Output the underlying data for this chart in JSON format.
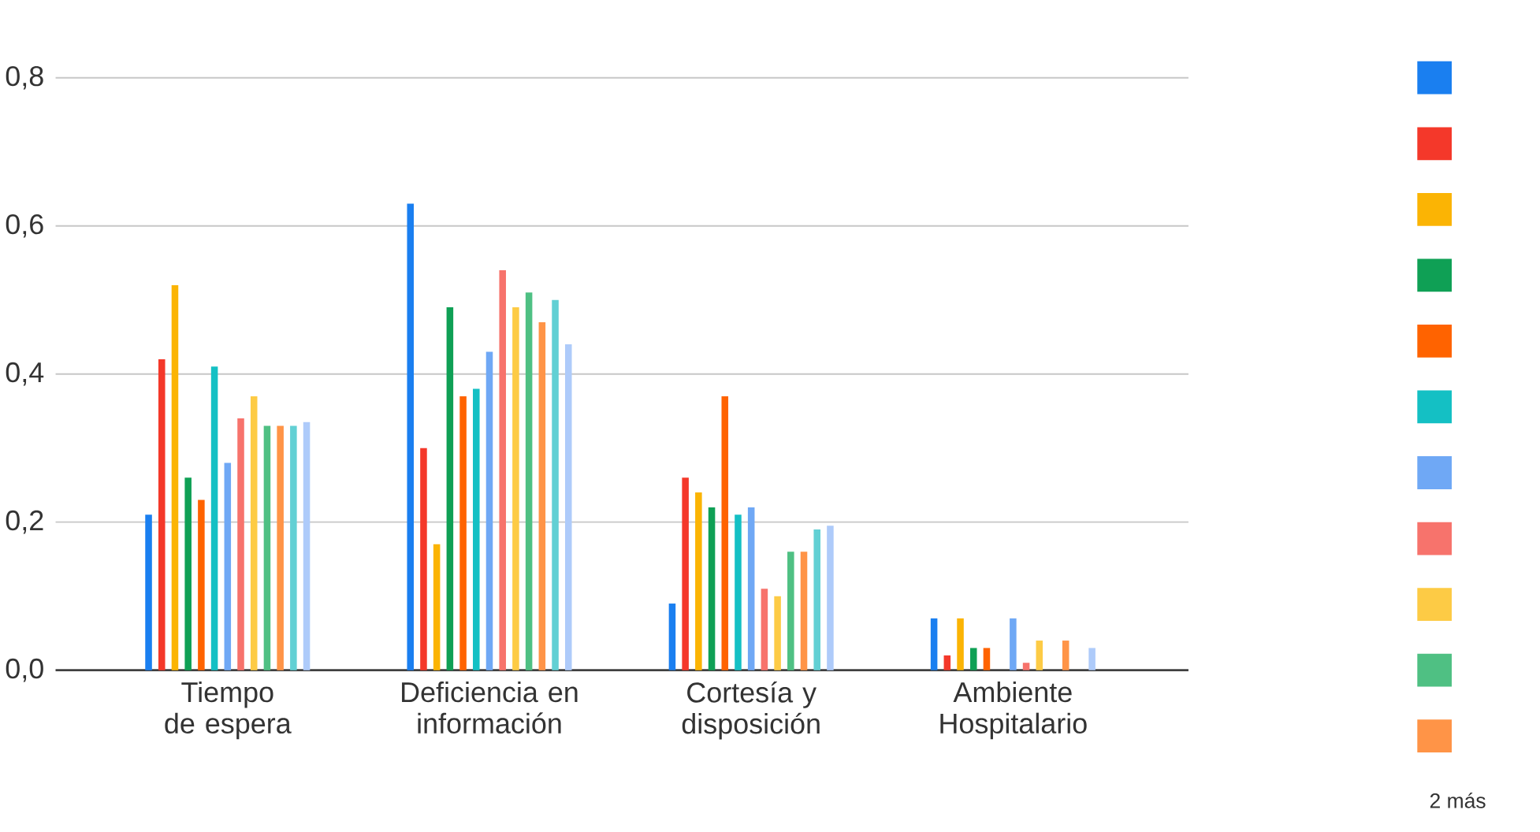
{
  "chart_data": {
    "type": "bar",
    "categories": [
      "Tiempo de espera",
      "Deficiencia en información",
      "Cortesía y disposición",
      "Ambiente Hospitalario"
    ],
    "series": [
      {
        "color": "#1a7ff0",
        "values": [
          0.21,
          0.63,
          0.09,
          0.07
        ]
      },
      {
        "color": "#f4382a",
        "values": [
          0.42,
          0.3,
          0.26,
          0.02
        ]
      },
      {
        "color": "#fbb404",
        "values": [
          0.52,
          0.17,
          0.24,
          0.07
        ]
      },
      {
        "color": "#0fa055",
        "values": [
          0.26,
          0.49,
          0.22,
          0.03
        ]
      },
      {
        "color": "#ff6300",
        "values": [
          0.23,
          0.37,
          0.37,
          0.03
        ]
      },
      {
        "color": "#14c0c4",
        "values": [
          0.41,
          0.38,
          0.21,
          0
        ]
      },
      {
        "color": "#6fa8f5",
        "values": [
          0.28,
          0.43,
          0.22,
          0.07
        ]
      },
      {
        "color": "#f7736c",
        "values": [
          0.34,
          0.54,
          0.11,
          0.01
        ]
      },
      {
        "color": "#fdcb45",
        "values": [
          0.37,
          0.49,
          0.1,
          0.04
        ]
      },
      {
        "color": "#4fc083",
        "values": [
          0.33,
          0.51,
          0.16,
          0
        ]
      },
      {
        "color": "#ff9447",
        "values": [
          0.33,
          0.47,
          0.16,
          0.04
        ]
      },
      {
        "color": "#62d0d4",
        "values": [
          0.33,
          0.5,
          0.19,
          0
        ]
      },
      {
        "color": "#aecbfa",
        "values": [
          0.335,
          0.44,
          0.195,
          0.03
        ]
      }
    ],
    "ylim": [
      0,
      0.8
    ],
    "yticks": [
      {
        "value": 0,
        "label": "0,0"
      },
      {
        "value": 0.2,
        "label": "0,2"
      },
      {
        "value": 0.4,
        "label": "0,4"
      },
      {
        "value": 0.6,
        "label": "0,6"
      },
      {
        "value": 0.8,
        "label": "0,8"
      }
    ],
    "grid": "y",
    "annotations": [
      "2 más"
    ]
  }
}
